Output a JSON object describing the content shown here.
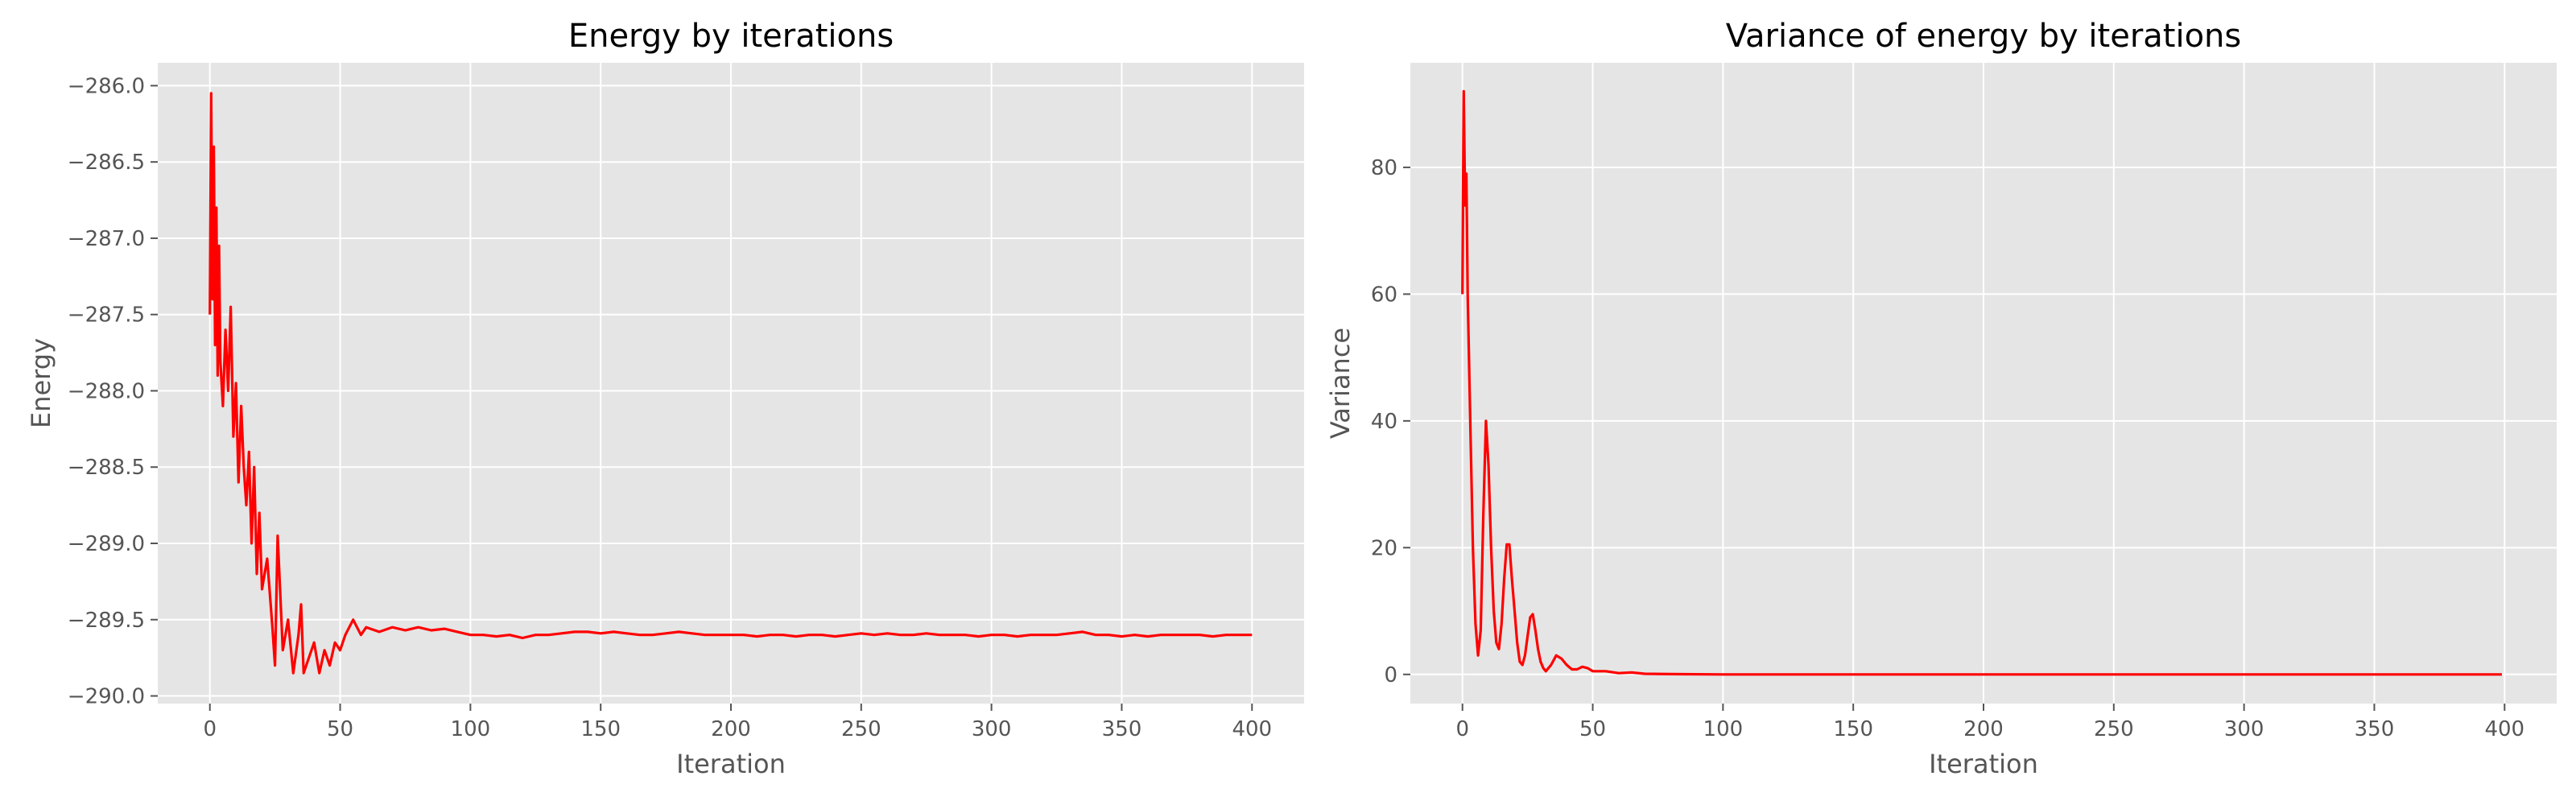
{
  "chart_data": [
    {
      "type": "line",
      "title": "Energy by iterations",
      "xlabel": "Iteration",
      "ylabel": "Energy",
      "xlim": [
        -20,
        420
      ],
      "ylim": [
        -290.05,
        -285.85
      ],
      "x_ticks": [
        0,
        50,
        100,
        150,
        200,
        250,
        300,
        350,
        400
      ],
      "y_ticks": [
        -290.0,
        -289.5,
        -289.0,
        -288.5,
        -288.0,
        -287.5,
        -287.0,
        -286.5,
        -286.0
      ],
      "y_tick_labels": [
        "−290.0",
        "−289.5",
        "−289.0",
        "−288.5",
        "−288.0",
        "−287.5",
        "−287.0",
        "−286.5",
        "−286.0"
      ],
      "grid": true,
      "background": "#e5e5e5",
      "series": [
        {
          "color": "#ff0000",
          "points": [
            [
              0,
              -287.5
            ],
            [
              0.5,
              -286.05
            ],
            [
              1,
              -287.4
            ],
            [
              1.5,
              -286.4
            ],
            [
              2,
              -287.7
            ],
            [
              2.5,
              -286.8
            ],
            [
              3,
              -287.9
            ],
            [
              3.5,
              -287.05
            ],
            [
              4,
              -287.8
            ],
            [
              5,
              -288.1
            ],
            [
              6,
              -287.6
            ],
            [
              7,
              -288.0
            ],
            [
              8,
              -287.45
            ],
            [
              9,
              -288.3
            ],
            [
              10,
              -287.95
            ],
            [
              11,
              -288.6
            ],
            [
              12,
              -288.1
            ],
            [
              13,
              -288.5
            ],
            [
              14,
              -288.75
            ],
            [
              15,
              -288.4
            ],
            [
              16,
              -289.0
            ],
            [
              17,
              -288.5
            ],
            [
              18,
              -289.2
            ],
            [
              19,
              -288.8
            ],
            [
              20,
              -289.3
            ],
            [
              22,
              -289.1
            ],
            [
              24,
              -289.55
            ],
            [
              25,
              -289.8
            ],
            [
              26,
              -288.95
            ],
            [
              28,
              -289.7
            ],
            [
              30,
              -289.5
            ],
            [
              32,
              -289.85
            ],
            [
              34,
              -289.6
            ],
            [
              35,
              -289.4
            ],
            [
              36,
              -289.85
            ],
            [
              38,
              -289.75
            ],
            [
              40,
              -289.65
            ],
            [
              42,
              -289.85
            ],
            [
              44,
              -289.7
            ],
            [
              46,
              -289.8
            ],
            [
              48,
              -289.65
            ],
            [
              50,
              -289.7
            ],
            [
              52,
              -289.6
            ],
            [
              55,
              -289.5
            ],
            [
              58,
              -289.6
            ],
            [
              60,
              -289.55
            ],
            [
              65,
              -289.58
            ],
            [
              70,
              -289.55
            ],
            [
              75,
              -289.57
            ],
            [
              80,
              -289.55
            ],
            [
              85,
              -289.57
            ],
            [
              90,
              -289.56
            ],
            [
              95,
              -289.58
            ],
            [
              100,
              -289.6
            ],
            [
              105,
              -289.6
            ],
            [
              110,
              -289.61
            ],
            [
              115,
              -289.6
            ],
            [
              120,
              -289.62
            ],
            [
              125,
              -289.6
            ],
            [
              130,
              -289.6
            ],
            [
              135,
              -289.59
            ],
            [
              140,
              -289.58
            ],
            [
              145,
              -289.58
            ],
            [
              150,
              -289.59
            ],
            [
              155,
              -289.58
            ],
            [
              160,
              -289.59
            ],
            [
              165,
              -289.6
            ],
            [
              170,
              -289.6
            ],
            [
              175,
              -289.59
            ],
            [
              180,
              -289.58
            ],
            [
              185,
              -289.59
            ],
            [
              190,
              -289.6
            ],
            [
              195,
              -289.6
            ],
            [
              200,
              -289.6
            ],
            [
              205,
              -289.6
            ],
            [
              210,
              -289.61
            ],
            [
              215,
              -289.6
            ],
            [
              220,
              -289.6
            ],
            [
              225,
              -289.61
            ],
            [
              230,
              -289.6
            ],
            [
              235,
              -289.6
            ],
            [
              240,
              -289.61
            ],
            [
              245,
              -289.6
            ],
            [
              250,
              -289.59
            ],
            [
              255,
              -289.6
            ],
            [
              260,
              -289.59
            ],
            [
              265,
              -289.6
            ],
            [
              270,
              -289.6
            ],
            [
              275,
              -289.59
            ],
            [
              280,
              -289.6
            ],
            [
              285,
              -289.6
            ],
            [
              290,
              -289.6
            ],
            [
              295,
              -289.61
            ],
            [
              300,
              -289.6
            ],
            [
              305,
              -289.6
            ],
            [
              310,
              -289.61
            ],
            [
              315,
              -289.6
            ],
            [
              320,
              -289.6
            ],
            [
              325,
              -289.6
            ],
            [
              330,
              -289.59
            ],
            [
              335,
              -289.58
            ],
            [
              340,
              -289.6
            ],
            [
              345,
              -289.6
            ],
            [
              350,
              -289.61
            ],
            [
              355,
              -289.6
            ],
            [
              360,
              -289.61
            ],
            [
              365,
              -289.6
            ],
            [
              370,
              -289.6
            ],
            [
              375,
              -289.6
            ],
            [
              380,
              -289.6
            ],
            [
              385,
              -289.61
            ],
            [
              390,
              -289.6
            ],
            [
              395,
              -289.6
            ],
            [
              400,
              -289.6
            ]
          ]
        }
      ]
    },
    {
      "type": "line",
      "title": "Variance of energy by iterations",
      "xlabel": "Iteration",
      "ylabel": "Variance",
      "xlim": [
        -20,
        420
      ],
      "ylim": [
        -4.6,
        96.5
      ],
      "x_ticks": [
        0,
        50,
        100,
        150,
        200,
        250,
        300,
        350,
        400
      ],
      "y_ticks": [
        0,
        20,
        40,
        60,
        80
      ],
      "y_tick_labels": [
        "0",
        "20",
        "40",
        "60",
        "80"
      ],
      "grid": true,
      "background": "#e5e5e5",
      "series": [
        {
          "color": "#ff0000",
          "points": [
            [
              0,
              60
            ],
            [
              0.5,
              92
            ],
            [
              1,
              74
            ],
            [
              1.5,
              79
            ],
            [
              2,
              60
            ],
            [
              3,
              40
            ],
            [
              4,
              20
            ],
            [
              5,
              8
            ],
            [
              6,
              3
            ],
            [
              7,
              7
            ],
            [
              8,
              25
            ],
            [
              9,
              40
            ],
            [
              10,
              33
            ],
            [
              11,
              20
            ],
            [
              12,
              10
            ],
            [
              13,
              5
            ],
            [
              14,
              4
            ],
            [
              15,
              8
            ],
            [
              16,
              15
            ],
            [
              17,
              20.5
            ],
            [
              18,
              20.5
            ],
            [
              19,
              15
            ],
            [
              20,
              10
            ],
            [
              21,
              5
            ],
            [
              22,
              2
            ],
            [
              23,
              1.5
            ],
            [
              24,
              3
            ],
            [
              25,
              6
            ],
            [
              26,
              9
            ],
            [
              27,
              9.5
            ],
            [
              28,
              7
            ],
            [
              29,
              4
            ],
            [
              30,
              2
            ],
            [
              31,
              1
            ],
            [
              32,
              0.5
            ],
            [
              34,
              1.5
            ],
            [
              36,
              3
            ],
            [
              38,
              2.5
            ],
            [
              40,
              1.5
            ],
            [
              42,
              0.8
            ],
            [
              44,
              0.8
            ],
            [
              46,
              1.2
            ],
            [
              48,
              1
            ],
            [
              50,
              0.5
            ],
            [
              55,
              0.5
            ],
            [
              60,
              0.2
            ],
            [
              65,
              0.3
            ],
            [
              70,
              0.1
            ],
            [
              80,
              0.05
            ],
            [
              100,
              0
            ],
            [
              150,
              0
            ],
            [
              200,
              0
            ],
            [
              250,
              0
            ],
            [
              300,
              0
            ],
            [
              350,
              0
            ],
            [
              399,
              0
            ]
          ]
        }
      ]
    }
  ]
}
